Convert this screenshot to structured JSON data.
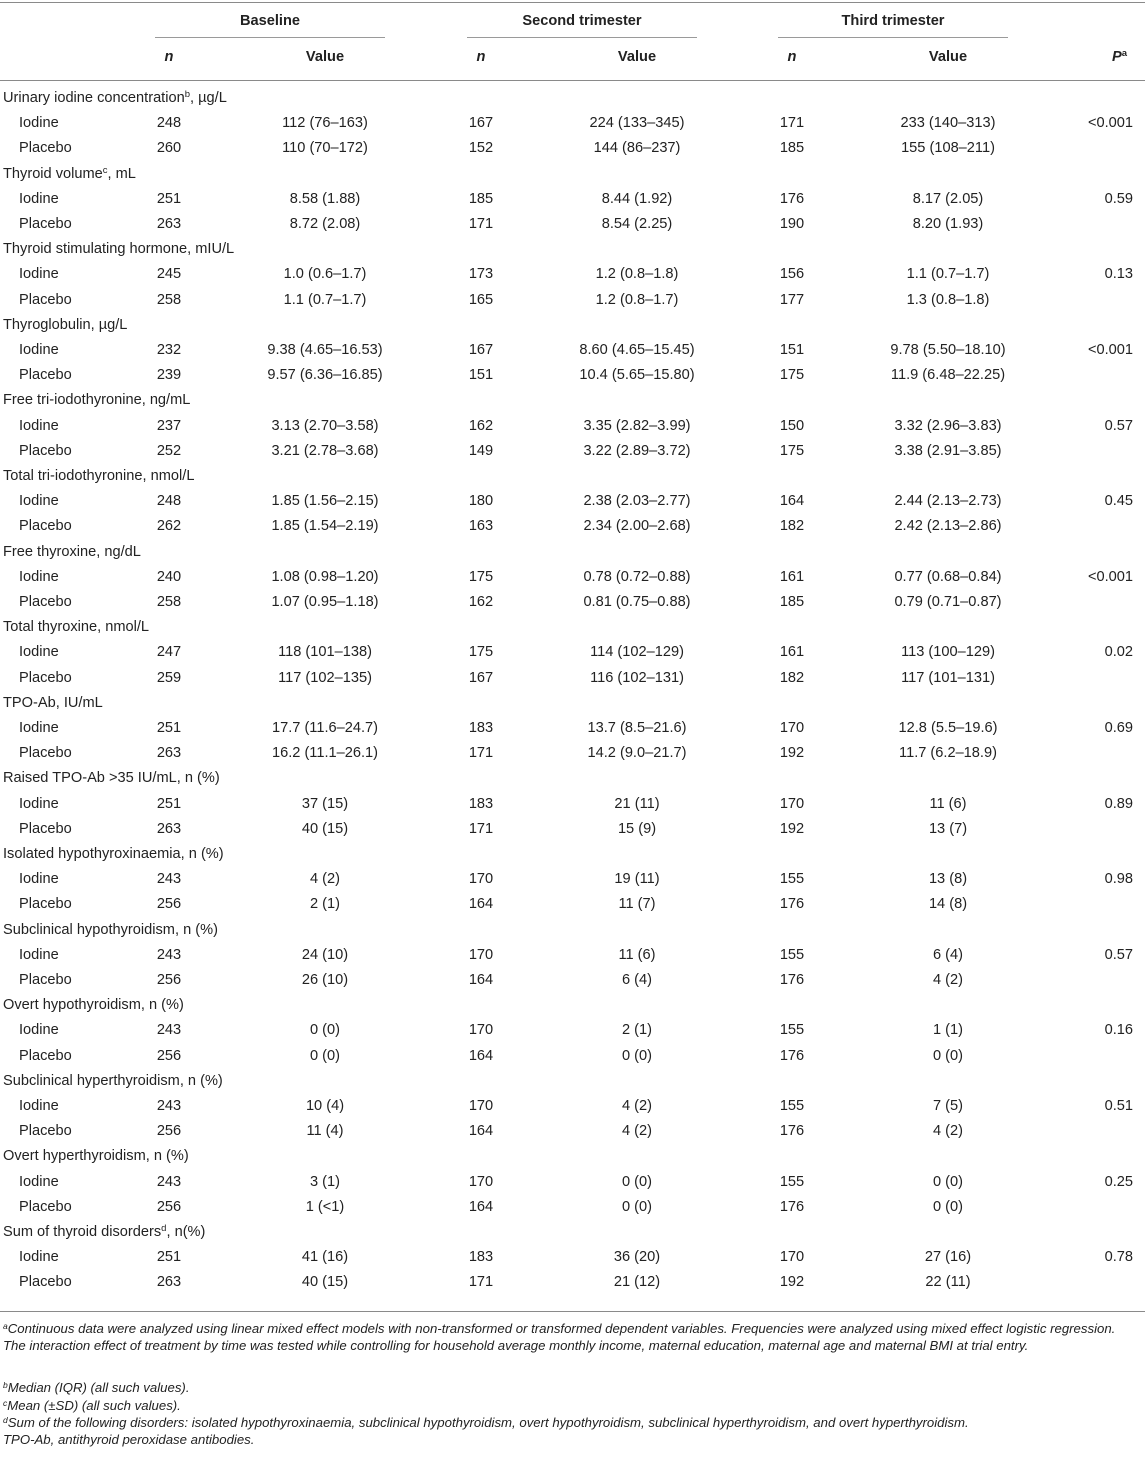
{
  "header": {
    "groups": [
      "Baseline",
      "Second trimester",
      "Third trimester"
    ],
    "n_label": "n",
    "value_label": "Value",
    "p_label": "P",
    "p_sup": "a"
  },
  "sections": [
    {
      "title": "Urinary iodine concentration",
      "sup": "b",
      "suffix": ", µg/L",
      "p": "<0.001",
      "rows": [
        {
          "label": "Iodine",
          "cells": [
            "248",
            "112 (76–163)",
            "167",
            "224 (133–345)",
            "171",
            "233 (140–313)"
          ]
        },
        {
          "label": "Placebo",
          "cells": [
            "260",
            "110 (70–172)",
            "152",
            "144 (86–237)",
            "185",
            "155 (108–211)"
          ]
        }
      ]
    },
    {
      "title": "Thyroid volume",
      "sup": "c",
      "suffix": ", mL",
      "p": "0.59",
      "rows": [
        {
          "label": "Iodine",
          "cells": [
            "251",
            "8.58 (1.88)",
            "185",
            "8.44 (1.92)",
            "176",
            "8.17 (2.05)"
          ]
        },
        {
          "label": "Placebo",
          "cells": [
            "263",
            "8.72 (2.08)",
            "171",
            "8.54 (2.25)",
            "190",
            "8.20 (1.93)"
          ]
        }
      ]
    },
    {
      "title": "Thyroid stimulating hormone, mIU/L",
      "sup": "",
      "suffix": "",
      "p": "0.13",
      "rows": [
        {
          "label": "Iodine",
          "cells": [
            "245",
            "1.0 (0.6–1.7)",
            "173",
            "1.2 (0.8–1.8)",
            "156",
            "1.1 (0.7–1.7)"
          ]
        },
        {
          "label": "Placebo",
          "cells": [
            "258",
            "1.1 (0.7–1.7)",
            "165",
            "1.2 (0.8–1.7)",
            "177",
            "1.3 (0.8–1.8)"
          ]
        }
      ]
    },
    {
      "title": "Thyroglobulin, µg/L",
      "sup": "",
      "suffix": "",
      "p": "<0.001",
      "rows": [
        {
          "label": "Iodine",
          "cells": [
            "232",
            "9.38 (4.65–16.53)",
            "167",
            "8.60 (4.65–15.45)",
            "151",
            "9.78 (5.50–18.10)"
          ]
        },
        {
          "label": "Placebo",
          "cells": [
            "239",
            "9.57 (6.36–16.85)",
            "151",
            "10.4 (5.65–15.80)",
            "175",
            "11.9 (6.48–22.25)"
          ]
        }
      ]
    },
    {
      "title": "Free tri-iodothyronine, ng/mL",
      "sup": "",
      "suffix": "",
      "p": "0.57",
      "rows": [
        {
          "label": "Iodine",
          "cells": [
            "237",
            "3.13 (2.70–3.58)",
            "162",
            "3.35 (2.82–3.99)",
            "150",
            "3.32 (2.96–3.83)"
          ]
        },
        {
          "label": "Placebo",
          "cells": [
            "252",
            "3.21 (2.78–3.68)",
            "149",
            "3.22 (2.89–3.72)",
            "175",
            "3.38 (2.91–3.85)"
          ]
        }
      ]
    },
    {
      "title": "Total tri-iodothyronine, nmol/L",
      "sup": "",
      "suffix": "",
      "p": "0.45",
      "rows": [
        {
          "label": "Iodine",
          "cells": [
            "248",
            "1.85 (1.56–2.15)",
            "180",
            "2.38 (2.03–2.77)",
            "164",
            "2.44 (2.13–2.73)"
          ]
        },
        {
          "label": "Placebo",
          "cells": [
            "262",
            "1.85 (1.54–2.19)",
            "163",
            "2.34 (2.00–2.68)",
            "182",
            "2.42 (2.13–2.86)"
          ]
        }
      ]
    },
    {
      "title": "Free thyroxine, ng/dL",
      "sup": "",
      "suffix": "",
      "p": "<0.001",
      "rows": [
        {
          "label": "Iodine",
          "cells": [
            "240",
            "1.08 (0.98–1.20)",
            "175",
            "0.78 (0.72–0.88)",
            "161",
            "0.77 (0.68–0.84)"
          ]
        },
        {
          "label": "Placebo",
          "cells": [
            "258",
            "1.07 (0.95–1.18)",
            "162",
            "0.81 (0.75–0.88)",
            "185",
            "0.79 (0.71–0.87)"
          ]
        }
      ]
    },
    {
      "title": "Total thyroxine, nmol/L",
      "sup": "",
      "suffix": "",
      "p": "0.02",
      "rows": [
        {
          "label": "Iodine",
          "cells": [
            "247",
            "118 (101–138)",
            "175",
            "114 (102–129)",
            "161",
            "113 (100–129)"
          ]
        },
        {
          "label": "Placebo",
          "cells": [
            "259",
            "117 (102–135)",
            "167",
            "116 (102–131)",
            "182",
            "117 (101–131)"
          ]
        }
      ]
    },
    {
      "title": "TPO-Ab, IU/mL",
      "sup": "",
      "suffix": "",
      "p": "0.69",
      "rows": [
        {
          "label": "Iodine",
          "cells": [
            "251",
            "17.7 (11.6–24.7)",
            "183",
            "13.7 (8.5–21.6)",
            "170",
            "12.8 (5.5–19.6)"
          ]
        },
        {
          "label": "Placebo",
          "cells": [
            "263",
            "16.2 (11.1–26.1)",
            "171",
            "14.2 (9.0–21.7)",
            "192",
            "11.7 (6.2–18.9)"
          ]
        }
      ]
    },
    {
      "title": "Raised TPO-Ab >35 IU/mL, n (%)",
      "sup": "",
      "suffix": "",
      "p": "0.89",
      "rows": [
        {
          "label": "Iodine",
          "cells": [
            "251",
            "37 (15)",
            "183",
            "21 (11)",
            "170",
            "11 (6)"
          ]
        },
        {
          "label": "Placebo",
          "cells": [
            "263",
            "40 (15)",
            "171",
            "15 (9)",
            "192",
            "13 (7)"
          ]
        }
      ]
    },
    {
      "title": "Isolated hypothyroxinaemia, n (%)",
      "sup": "",
      "suffix": "",
      "p": "0.98",
      "rows": [
        {
          "label": "Iodine",
          "cells": [
            "243",
            "4 (2)",
            "170",
            "19 (11)",
            "155",
            "13 (8)"
          ]
        },
        {
          "label": "Placebo",
          "cells": [
            "256",
            "2 (1)",
            "164",
            "11 (7)",
            "176",
            "14 (8)"
          ]
        }
      ]
    },
    {
      "title": "Subclinical hypothyroidism, n (%)",
      "sup": "",
      "suffix": "",
      "p": "0.57",
      "rows": [
        {
          "label": "Iodine",
          "cells": [
            "243",
            "24 (10)",
            "170",
            "11 (6)",
            "155",
            "6 (4)"
          ]
        },
        {
          "label": "Placebo",
          "cells": [
            "256",
            "26 (10)",
            "164",
            "6 (4)",
            "176",
            "4 (2)"
          ]
        }
      ]
    },
    {
      "title": "Overt hypothyroidism, n (%)",
      "sup": "",
      "suffix": "",
      "p": "0.16",
      "rows": [
        {
          "label": "Iodine",
          "cells": [
            "243",
            "0 (0)",
            "170",
            "2 (1)",
            "155",
            "1 (1)"
          ]
        },
        {
          "label": "Placebo",
          "cells": [
            "256",
            "0 (0)",
            "164",
            "0 (0)",
            "176",
            "0 (0)"
          ]
        }
      ]
    },
    {
      "title": "Subclinical hyperthyroidism, n (%)",
      "sup": "",
      "suffix": "",
      "p": "0.51",
      "rows": [
        {
          "label": "Iodine",
          "cells": [
            "243",
            "10 (4)",
            "170",
            "4 (2)",
            "155",
            "7 (5)"
          ]
        },
        {
          "label": "Placebo",
          "cells": [
            "256",
            "11 (4)",
            "164",
            "4 (2)",
            "176",
            "4 (2)"
          ]
        }
      ]
    },
    {
      "title": "Overt hyperthyroidism, n (%)",
      "sup": "",
      "suffix": "",
      "p": "0.25",
      "rows": [
        {
          "label": "Iodine",
          "cells": [
            "243",
            "3 (1)",
            "170",
            "0 (0)",
            "155",
            "0 (0)"
          ]
        },
        {
          "label": "Placebo",
          "cells": [
            "256",
            "1 (<1)",
            "164",
            "0 (0)",
            "176",
            "0 (0)"
          ]
        }
      ]
    },
    {
      "title": "Sum of thyroid disorders",
      "sup": "d",
      "suffix": ", n(%)",
      "p": "0.78",
      "rows": [
        {
          "label": "Iodine",
          "cells": [
            "251",
            "41 (16)",
            "183",
            "36 (20)",
            "170",
            "27 (16)"
          ]
        },
        {
          "label": "Placebo",
          "cells": [
            "263",
            "40 (15)",
            "171",
            "21 (12)",
            "192",
            "22 (11)"
          ]
        }
      ]
    }
  ],
  "footnotes": [
    {
      "sup": "a",
      "text": "Continuous data were analyzed using linear mixed effect models with non-transformed or transformed dependent variables. Frequencies were analyzed using mixed effect logistic regression. The interaction effect of treatment by time was tested while controlling for household average monthly income, maternal education, maternal age and maternal BMI at trial entry."
    },
    {
      "sup": "b",
      "text": "Median (IQR) (all such values)."
    },
    {
      "sup": "c",
      "text": "Mean (±SD) (all such values)."
    },
    {
      "sup": "d",
      "text": "Sum of the following disorders: isolated hypothyroxinaemia, subclinical hypothyroidism, overt hypothyroidism, subclinical hyperthyroidism, and overt hyperthyroidism."
    },
    {
      "sup": "",
      "text": "TPO-Ab, antithyroid peroxidase antibodies."
    }
  ]
}
